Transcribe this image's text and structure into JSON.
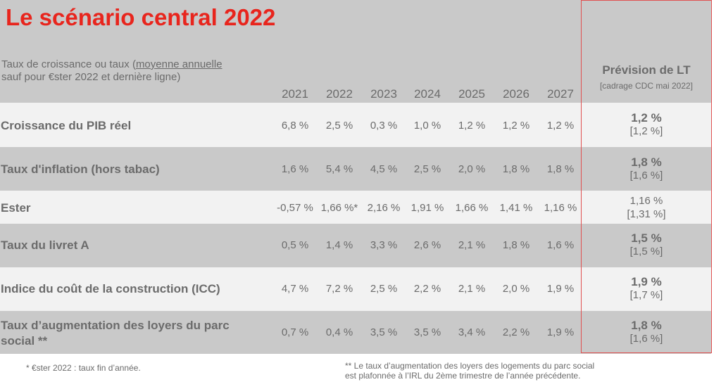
{
  "title": "Le scénario central 2022",
  "subtitle": {
    "line1_pre": "Taux de croissance ou taux (",
    "line1_ul": "moyenne annuelle",
    "line2": "sauf pour €ster 2022 et dernière ligne)"
  },
  "years": [
    "2021",
    "2022",
    "2023",
    "2024",
    "2025",
    "2026",
    "2027"
  ],
  "forecast_header": {
    "title": "Prévision de LT",
    "subtitle": "[cadrage CDC mai 2022]"
  },
  "rows": [
    {
      "label": "Croissance du PIB réel",
      "values": [
        "6,8 %",
        "2,5 %",
        "0,3 %",
        "1,0 %",
        "1,2 %",
        "1,2 %",
        "1,2 %"
      ],
      "forecast": "1,2 %",
      "previous": "[1,2 %]"
    },
    {
      "label": "Taux d'inflation (hors tabac)",
      "values": [
        "1,6 %",
        "5,4 %",
        "4,5 %",
        "2,5 %",
        "2,0 %",
        "1,8 %",
        "1,8 %"
      ],
      "forecast": "1,8 %",
      "previous": "[1,6 %]"
    },
    {
      "label": "Ester",
      "values": [
        "-0,57 %",
        "1,66 %*",
        "2,16 %",
        "1,91 %",
        "1,66 %",
        "1,41 %",
        "1,16 %"
      ],
      "forecast": "1,16 %",
      "previous": "[1,31 %]"
    },
    {
      "label": "Taux du livret A",
      "values": [
        "0,5 %",
        "1,4 %",
        "3,3 %",
        "2,6 %",
        "2,1 %",
        "1,8 %",
        "1,6 %"
      ],
      "forecast": "1,5 %",
      "previous": "[1,5 %]"
    },
    {
      "label": "Indice du coût de la construction (ICC)",
      "values": [
        "4,7 %",
        "7,2 %",
        "2,5 %",
        "2,2 %",
        "2,1 %",
        "2,0 %",
        "1,9 %"
      ],
      "forecast": "1,9 %",
      "previous": "[1,7 %]"
    },
    {
      "label_line1": "Taux d’augmentation des loyers du parc",
      "label_line2": "social **",
      "values": [
        "0,7 %",
        "0,4 %",
        "3,5 %",
        "3,5 %",
        "3,4 %",
        "2,2 %",
        "1,9 %"
      ],
      "forecast": "1,8 %",
      "previous": "[1,6 %]"
    }
  ],
  "notes": {
    "left": "* €ster 2022 : taux fin d’année.",
    "right_line1": "** Le taux d’augmentation des loyers des logements du parc social",
    "right_line2": "est plafonnée à l’IRL du 2ème trimestre de l’année précédente."
  },
  "colors": {
    "title": "#e8251d",
    "text": "#6b6b6b",
    "band_dark": "#c9c9c9",
    "band_light": "#f2f2f2",
    "frame": "#e05050"
  }
}
